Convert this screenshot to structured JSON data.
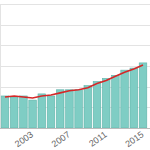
{
  "chart_data": {
    "type": "bar",
    "categories": [
      null,
      null,
      null,
      "2003",
      null,
      null,
      null,
      "2007",
      null,
      null,
      null,
      "2011",
      null,
      null,
      null,
      "2015"
    ],
    "series": [
      {
        "type": "bar",
        "color": "#7fcdc4",
        "values": [
          31,
          30,
          31,
          27,
          33,
          31,
          37,
          37,
          37,
          41,
          45,
          48,
          51,
          56,
          58,
          63
        ]
      },
      {
        "type": "line",
        "color": "#d62728",
        "values": [
          30,
          31,
          30,
          29,
          31,
          32,
          34,
          36,
          37,
          39,
          43,
          46,
          50,
          54,
          57,
          61
        ]
      }
    ],
    "ylim": [
      0,
      120
    ],
    "yticks": [
      0,
      20,
      40,
      60,
      80,
      100,
      120
    ],
    "grid": true,
    "tick_labels": "x"
  }
}
